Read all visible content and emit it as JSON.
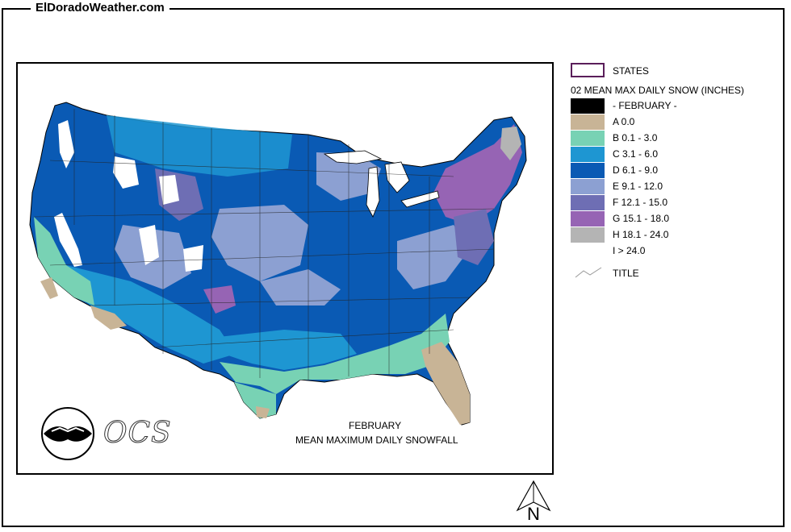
{
  "site": {
    "title": "ElDoradoWeather.com"
  },
  "map": {
    "caption_month": "FEBRUARY",
    "caption_title": "MEAN MAXIMUM DAILY SNOWFALL",
    "logo_text": "OCS",
    "north_label": "N"
  },
  "legend": {
    "states_label": "STATES",
    "layer_title": "02 MEAN MAX DAILY SNOW (INCHES)",
    "title_label": "TITLE",
    "items": [
      {
        "label": "- FEBRUARY -",
        "color": "#000000"
      },
      {
        "label": "A 0.0",
        "color": "#c8b496"
      },
      {
        "label": "B 0.1 - 3.0",
        "color": "#78d2b4"
      },
      {
        "label": "C 3.1 - 6.0",
        "color": "#1e96d2"
      },
      {
        "label": "D 6.1 - 9.0",
        "color": "#0a5ab4"
      },
      {
        "label": "E 9.1 - 12.0",
        "color": "#8ca0d2"
      },
      {
        "label": "F 12.1 - 15.0",
        "color": "#6e6eb4"
      },
      {
        "label": "G 15.1 - 18.0",
        "color": "#9664b4"
      },
      {
        "label": "H 18.1 - 24.0",
        "color": "#b4b4b4"
      },
      {
        "label": "I > 24.0",
        "color": "#ffffff"
      }
    ],
    "states_border_color": "#5a1e5a"
  }
}
